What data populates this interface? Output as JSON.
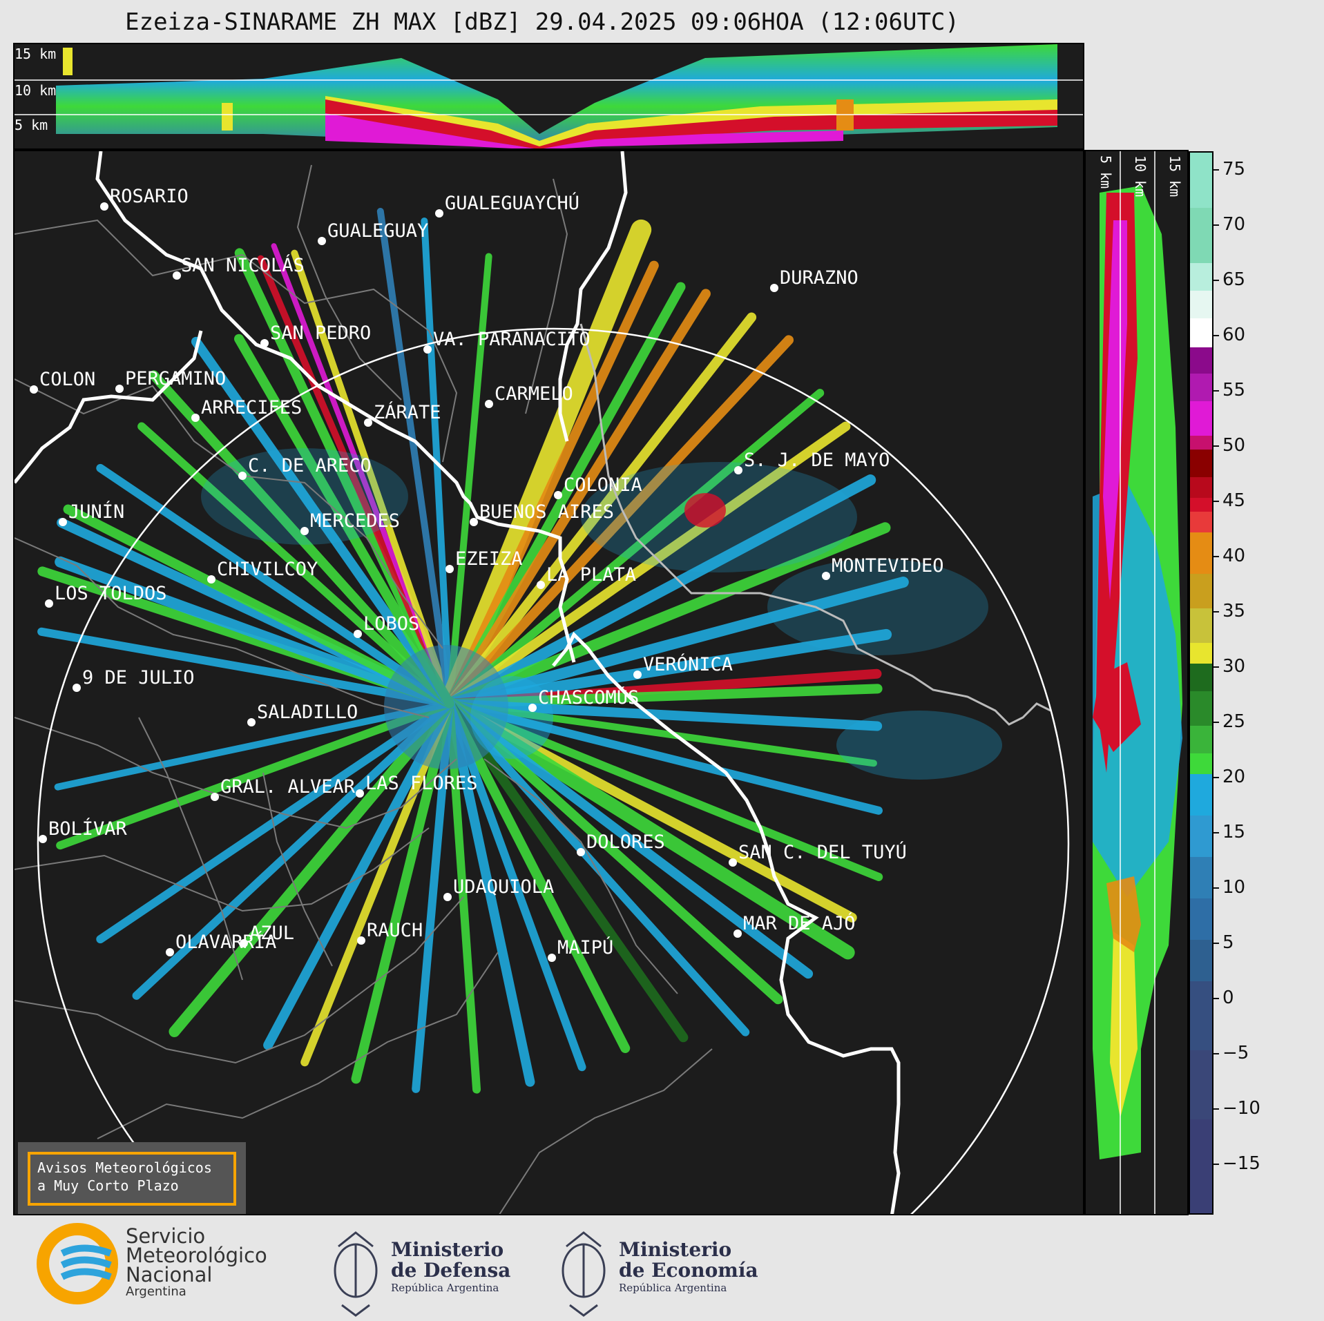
{
  "title": "Ezeiza-SINARAME ZH MAX [dBZ] 29.04.2025 09:06HOA (12:06UTC)",
  "top_panel": {
    "height_labels": [
      "15 km",
      "10 km",
      "5 km"
    ]
  },
  "side_panel": {
    "height_labels": [
      "5 km",
      "10 km",
      "15 km"
    ]
  },
  "colorbar": {
    "unit": "dBZ",
    "ticks": [
      "75",
      "70",
      "65",
      "60",
      "55",
      "50",
      "45",
      "40",
      "35",
      "30",
      "25",
      "20",
      "15",
      "10",
      "5",
      "0",
      "−5",
      "−10",
      "−15"
    ],
    "colors": {
      "teal_high": "#7fd9b4",
      "white_60": "#ffffff",
      "purple": "#8b0a8b",
      "magenta": "#e01ad6",
      "red": "#d40f2a",
      "dark_red": "#8a0000",
      "orange": "#e58c14",
      "yellow": "#e8e52e",
      "green": "#3ed93a",
      "dark_green": "#1e6b1e",
      "cyan_blue": "#1fa9dd",
      "steel_blue": "#2f7fb5",
      "navy": "#3a3f75"
    }
  },
  "cities": [
    "ROSARIO",
    "GUALEGUAYCHÚ",
    "GUALEGUAY",
    "SAN NICOLÁS",
    "DURAZNO",
    "SAN PEDRO",
    "VA. PARANACITO",
    "COLON",
    "PERGAMINO",
    "CARMELO",
    "ARRECIFES",
    "ZÁRATE",
    "S. J. DE MAYO",
    "C. DE ARECO",
    "COLONIA",
    "JUNÍN",
    "BUENOS AIRES",
    "MERCEDES",
    "EZEIZA",
    "MONTEVIDEO",
    "CHIVILCOY",
    "LA PLATA",
    "LOS TOLDOS",
    "LOBOS",
    "VERÓNICA",
    "9 DE JULIO",
    "CHASCOMÚS",
    "SALADILLO",
    "GRAL. ALVEAR",
    "LAS FLORES",
    "BOLÍVAR",
    "DOLORES",
    "SAN C. DEL TUYÚ",
    "UDAQUIOLA",
    "MAR DE AJÓ",
    "AZUL",
    "RAUCH",
    "OLAVARRÍA",
    "MAIPÚ"
  ],
  "warning_box": {
    "line1": "Avisos Meteorológicos",
    "line2": "a Muy Corto Plazo"
  },
  "logos": {
    "smn": {
      "line1": "Servicio",
      "line2": "Meteorológico",
      "line3": "Nacional",
      "line4": "Argentina"
    },
    "defensa": {
      "line1": "Ministerio",
      "line2": "de Defensa",
      "line3": "República Argentina"
    },
    "economia": {
      "line1": "Ministerio",
      "line2": "de Economía",
      "line3": "República Argentina"
    }
  }
}
